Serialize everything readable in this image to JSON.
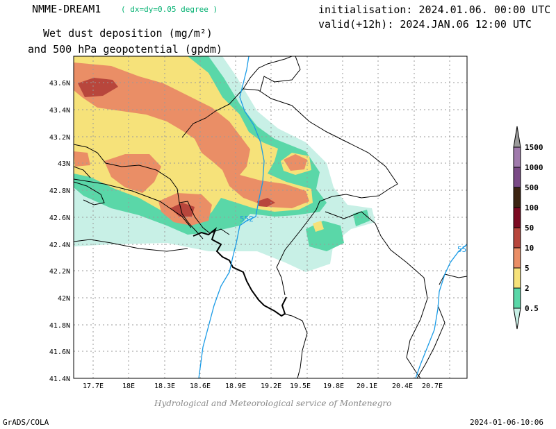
{
  "header": {
    "model": "NMME-DREAM1",
    "resolution": "( dx=dy=0.05 degree )",
    "init": "initialisation: 2024.01.06. 00:00 UTC",
    "valid": "valid(+12h): 2024.JAN.06 12:00 UTC",
    "field_line1": "Wet dust deposition (mg/m²)",
    "field_line2": "and 500 hPa geopotential (gpdm)"
  },
  "map": {
    "lon_labels": [
      "17.7E",
      "18E",
      "18.3E",
      "18.6E",
      "18.9E",
      "19.2E",
      "19.5E",
      "19.8E",
      "20.1E",
      "20.4E",
      "20.7E"
    ],
    "lat_labels": [
      "43.6N",
      "43.4N",
      "43.2N",
      "43N",
      "42.8N",
      "42.6N",
      "42.4N",
      "42.2N",
      "42N",
      "41.8N",
      "41.6N",
      "41.4N"
    ],
    "contour_labels": [
      "552",
      "55"
    ],
    "contour_color": "#1a9be6",
    "border_color": "#000000",
    "gridline_color": "#9a9a9a"
  },
  "legend": {
    "levels": [
      "1500",
      "1000",
      "500",
      "100",
      "50",
      "10",
      "5",
      "2",
      "0.5"
    ],
    "colors": {
      "0.5": "#c8f0e6",
      "2": "#5ad7a8",
      "5": "#f6e27a",
      "10": "#ea8e66",
      "50": "#b8463c",
      "100": "#7c0a22",
      "500": "#3c2412",
      "1000": "#7a4a86",
      "1500": "#a07aac",
      "cap": "#9a9a9a"
    }
  },
  "footer": {
    "credit": "Hydrological and Meteorological service of Montenegro",
    "software": "GrADS/COLA",
    "timestamp": "2024-01-06-10:06"
  }
}
